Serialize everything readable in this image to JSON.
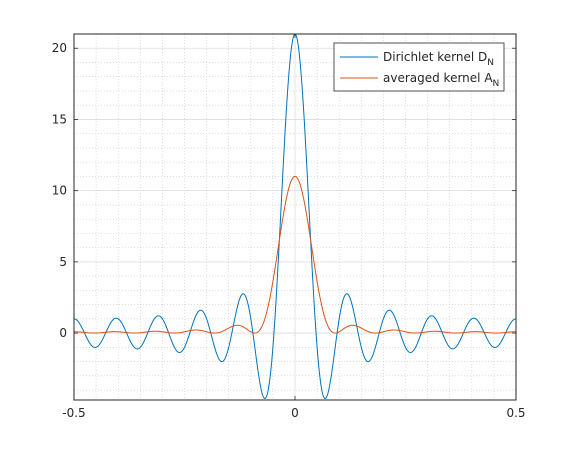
{
  "chart_data": {
    "type": "line",
    "title": "",
    "xlabel": "",
    "ylabel": "",
    "xlim": [
      -0.5,
      0.5
    ],
    "ylim": [
      -4.7,
      21
    ],
    "x_ticks": [
      -0.5,
      0,
      0.5
    ],
    "x_tick_labels": [
      "-0.5",
      "0",
      "0.5"
    ],
    "y_ticks": [
      0,
      5,
      10,
      15,
      20
    ],
    "y_tick_labels": [
      "0",
      "5",
      "10",
      "15",
      "20"
    ],
    "grid": true,
    "minor_grid": true,
    "legend_position": "top-right",
    "series": [
      {
        "name": "Dirichlet kernel D",
        "name_subscript": "N",
        "color": "#0072bd",
        "peak_value": 21,
        "first_zero_x": 0.0476,
        "sample_points": [
          {
            "x": -0.5,
            "y": 1
          },
          {
            "x": -0.45,
            "y": -1
          },
          {
            "x": -0.4,
            "y": 1
          },
          {
            "x": -0.3,
            "y": 1.2
          },
          {
            "x": -0.2,
            "y": 1.6
          },
          {
            "x": -0.12,
            "y": 2.7
          },
          {
            "x": -0.07,
            "y": -4.5
          },
          {
            "x": 0,
            "y": 21
          },
          {
            "x": 0.07,
            "y": -4.5
          },
          {
            "x": 0.12,
            "y": 2.7
          },
          {
            "x": 0.2,
            "y": 1.6
          },
          {
            "x": 0.3,
            "y": 1.2
          },
          {
            "x": 0.4,
            "y": 1
          },
          {
            "x": 0.45,
            "y": -1
          },
          {
            "x": 0.5,
            "y": 1
          }
        ]
      },
      {
        "name": "averaged kernel A",
        "name_subscript": "N",
        "color": "#d95319",
        "peak_value": 12.4,
        "sample_points": [
          {
            "x": -0.5,
            "y": 0
          },
          {
            "x": -0.2,
            "y": 0.05
          },
          {
            "x": -0.11,
            "y": 0.3
          },
          {
            "x": -0.08,
            "y": -0.6
          },
          {
            "x": -0.04,
            "y": 6
          },
          {
            "x": 0,
            "y": 12.4
          },
          {
            "x": 0.04,
            "y": 6
          },
          {
            "x": 0.08,
            "y": -0.6
          },
          {
            "x": 0.11,
            "y": 0.3
          },
          {
            "x": 0.2,
            "y": 0.05
          },
          {
            "x": 0.5,
            "y": 0
          }
        ]
      }
    ]
  }
}
